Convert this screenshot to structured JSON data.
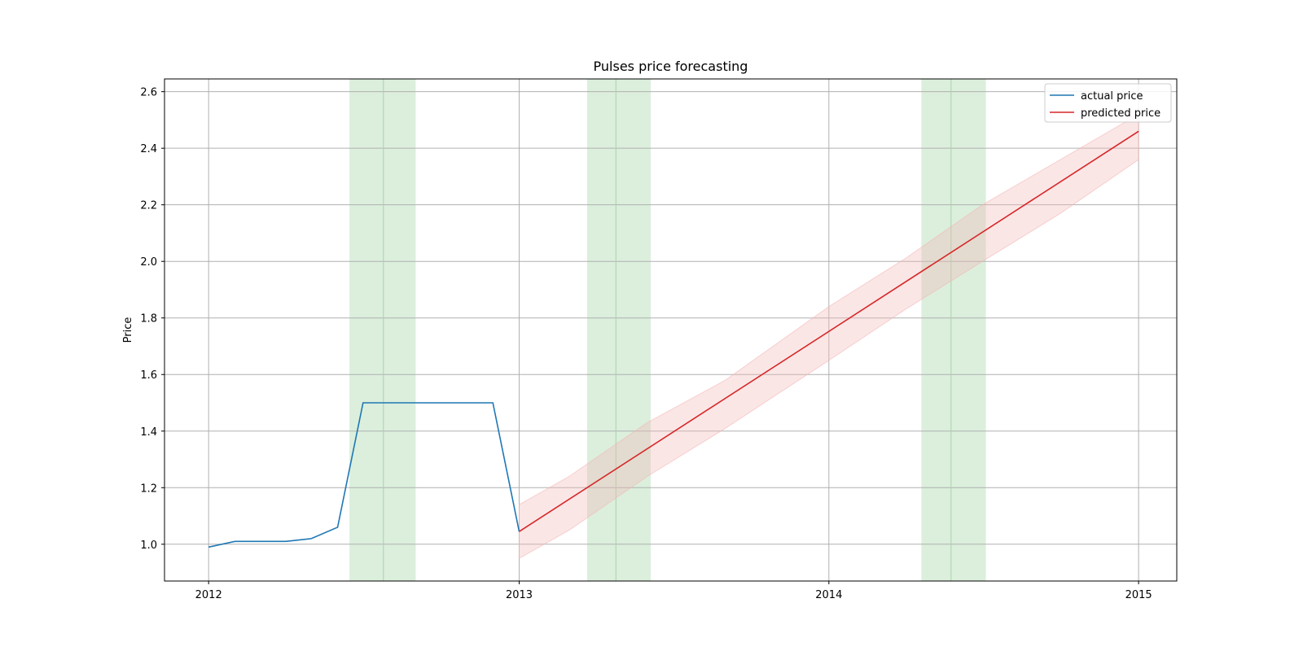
{
  "chart_data": {
    "type": "line",
    "title": "Pulses price forecasting",
    "xlabel": "",
    "ylabel": "Price",
    "xlim": [
      "2011-11-10",
      "2015-02-15"
    ],
    "ylim": [
      0.87,
      2.645
    ],
    "x_ticks": [
      {
        "x": "2012-01-01",
        "label": "2012"
      },
      {
        "x": "2013-01-01",
        "label": "2013"
      },
      {
        "x": "2014-01-01",
        "label": "2014"
      },
      {
        "x": "2015-01-01",
        "label": "2015"
      }
    ],
    "y_ticks": [
      1.0,
      1.2,
      1.4,
      1.6,
      1.8,
      2.0,
      2.2,
      2.4,
      2.6
    ],
    "y_tick_labels": [
      "1.0",
      "1.2",
      "1.4",
      "1.6",
      "1.8",
      "2.0",
      "2.2",
      "2.4",
      "2.6"
    ],
    "grid": true,
    "legend_position": "top-right",
    "series": [
      {
        "name": "actual price",
        "color": "#1f77b4",
        "points": [
          {
            "x": "2012-01-01",
            "y": 0.99
          },
          {
            "x": "2012-02-01",
            "y": 1.01
          },
          {
            "x": "2012-03-01",
            "y": 1.01
          },
          {
            "x": "2012-04-01",
            "y": 1.01
          },
          {
            "x": "2012-05-01",
            "y": 1.02
          },
          {
            "x": "2012-06-01",
            "y": 1.06
          },
          {
            "x": "2012-07-01",
            "y": 1.5
          },
          {
            "x": "2012-08-01",
            "y": 1.5
          },
          {
            "x": "2012-09-01",
            "y": 1.5
          },
          {
            "x": "2012-10-01",
            "y": 1.5
          },
          {
            "x": "2012-11-01",
            "y": 1.5
          },
          {
            "x": "2012-12-01",
            "y": 1.5
          },
          {
            "x": "2013-01-01",
            "y": 1.045
          }
        ]
      },
      {
        "name": "predicted price",
        "color": "#d62728",
        "points": [
          {
            "x": "2013-01-01",
            "y": 1.045
          },
          {
            "x": "2015-01-01",
            "y": 2.46
          }
        ]
      }
    ],
    "confidence_band": {
      "color": "#f4b6b6",
      "upper": [
        {
          "x": "2013-01-01",
          "y": 1.14
        },
        {
          "x": "2013-03-01",
          "y": 1.24
        },
        {
          "x": "2013-06-01",
          "y": 1.43
        },
        {
          "x": "2013-09-01",
          "y": 1.58
        },
        {
          "x": "2014-01-01",
          "y": 1.84
        },
        {
          "x": "2014-04-01",
          "y": 2.01
        },
        {
          "x": "2014-07-01",
          "y": 2.2
        },
        {
          "x": "2014-10-01",
          "y": 2.36
        },
        {
          "x": "2015-01-01",
          "y": 2.52
        }
      ],
      "lower": [
        {
          "x": "2013-01-01",
          "y": 0.95
        },
        {
          "x": "2013-03-01",
          "y": 1.05
        },
        {
          "x": "2013-06-01",
          "y": 1.24
        },
        {
          "x": "2013-09-01",
          "y": 1.41
        },
        {
          "x": "2014-01-01",
          "y": 1.65
        },
        {
          "x": "2014-04-01",
          "y": 1.83
        },
        {
          "x": "2014-07-01",
          "y": 2.0
        },
        {
          "x": "2014-10-01",
          "y": 2.17
        },
        {
          "x": "2015-01-01",
          "y": 2.36
        }
      ]
    },
    "highlight_spans": [
      {
        "start": "2012-06-15",
        "end": "2012-09-01",
        "color": "#c8e6c9"
      },
      {
        "start": "2013-03-22",
        "end": "2013-06-05",
        "color": "#c8e6c9"
      },
      {
        "start": "2014-04-20",
        "end": "2014-07-05",
        "color": "#c8e6c9"
      }
    ],
    "span_center_lines": [
      "2012-07-25",
      "2013-04-25",
      "2014-05-25"
    ]
  }
}
